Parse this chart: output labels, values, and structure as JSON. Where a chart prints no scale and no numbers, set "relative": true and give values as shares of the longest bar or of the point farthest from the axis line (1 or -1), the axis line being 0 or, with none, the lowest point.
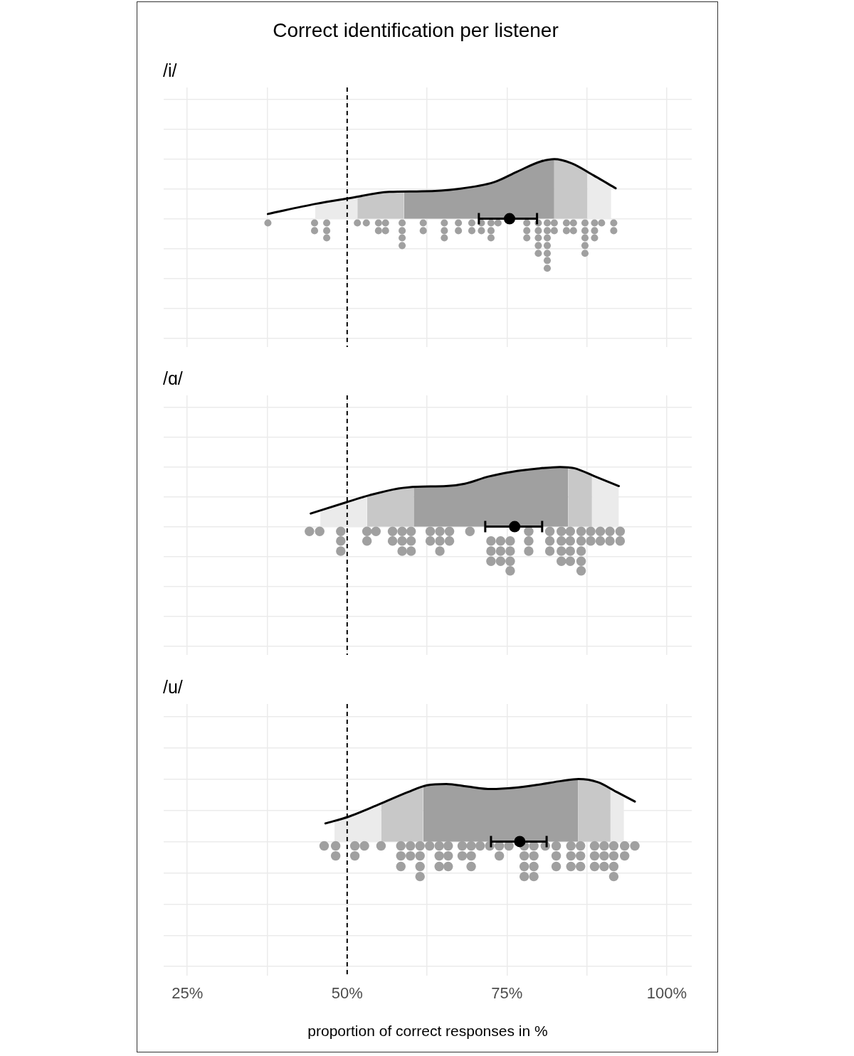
{
  "chart_data": [
    {
      "type": "line",
      "title": "Correct identification per listener",
      "subtitle": "/i/",
      "relative": true,
      "xlim": [
        21.3,
        103.9
      ],
      "xticks": [
        {
          "value": 25,
          "label": null
        },
        {
          "value": 37.5,
          "label": null
        },
        {
          "value": 50,
          "label": null
        },
        {
          "value": 62.5,
          "label": null
        },
        {
          "value": 75,
          "label": null
        },
        {
          "value": 87.5,
          "label": null
        },
        {
          "value": 100,
          "label": null
        }
      ],
      "tick_labels": false,
      "grid": true,
      "ref_lines": [
        {
          "axis": "x",
          "value": 50,
          "color": "#000000",
          "line_style": "dashed"
        }
      ],
      "series": [
        {
          "type": "area",
          "color": "#ebebeb",
          "x": [
            45.0,
            50.1,
            51.6
          ],
          "values": [
            0.25,
            0.34,
            0.37
          ]
        },
        {
          "type": "area",
          "color": "#c8c8c8",
          "x": [
            51.6,
            56.6,
            58.9
          ],
          "values": [
            0.37,
            0.45,
            0.46
          ]
        },
        {
          "type": "area",
          "color": "#a0a0a0",
          "x": [
            58.9,
            61.7,
            67.3,
            72.9,
            76.6,
            80.3,
            82.4
          ],
          "values": [
            0.46,
            0.46,
            0.5,
            0.61,
            0.79,
            0.96,
            1.0
          ]
        },
        {
          "type": "area",
          "color": "#c8c8c8",
          "x": [
            82.4,
            85.1,
            87.6
          ],
          "values": [
            1.0,
            0.93,
            0.78
          ]
        },
        {
          "type": "area",
          "color": "#ebebeb",
          "x": [
            87.6,
            88.5,
            91.3
          ],
          "values": [
            0.78,
            0.73,
            0.56
          ]
        },
        {
          "color": "#000000",
          "x": [
            37.6,
            45.1,
            50.1,
            56.6,
            61.7,
            67.3,
            72.9,
            76.6,
            80.3,
            82.4,
            85.1,
            88.5,
            92.0
          ],
          "values": [
            0.08,
            0.25,
            0.34,
            0.45,
            0.46,
            0.5,
            0.61,
            0.79,
            0.96,
            1.0,
            0.93,
            0.73,
            0.51
          ]
        },
        {
          "type": "scatter",
          "marker": "circle",
          "color": "#a0a0a0",
          "x": [
            37.6,
            44.9,
            44.9,
            46.8,
            46.8,
            46.8,
            51.6,
            53.0,
            54.9,
            54.9,
            56.0,
            56.0,
            58.6,
            58.6,
            58.6,
            58.6,
            61.9,
            61.9,
            65.2,
            65.2,
            65.2,
            67.4,
            67.4,
            69.5,
            69.5,
            71.0,
            71.0,
            72.5,
            72.5,
            72.5,
            73.6,
            78.1,
            78.1,
            78.1,
            79.9,
            79.9,
            79.9,
            79.9,
            79.9,
            81.3,
            81.3,
            81.3,
            81.3,
            81.3,
            81.3,
            81.3,
            82.4,
            82.4,
            84.3,
            84.3,
            85.4,
            85.4,
            87.2,
            87.2,
            87.2,
            87.2,
            87.2,
            88.7,
            88.7,
            88.7,
            89.8,
            91.7,
            91.7
          ],
          "values": [
            -0.07,
            -0.07,
            -0.2,
            -0.07,
            -0.2,
            -0.32,
            -0.07,
            -0.07,
            -0.07,
            -0.2,
            -0.07,
            -0.2,
            -0.07,
            -0.2,
            -0.32,
            -0.45,
            -0.07,
            -0.2,
            -0.07,
            -0.2,
            -0.32,
            -0.07,
            -0.2,
            -0.07,
            -0.2,
            -0.07,
            -0.2,
            -0.07,
            -0.2,
            -0.32,
            -0.07,
            -0.07,
            -0.2,
            -0.32,
            -0.07,
            -0.2,
            -0.32,
            -0.45,
            -0.58,
            -0.07,
            -0.2,
            -0.32,
            -0.45,
            -0.58,
            -0.7,
            -0.83,
            -0.07,
            -0.2,
            -0.07,
            -0.2,
            -0.07,
            -0.2,
            -0.07,
            -0.2,
            -0.32,
            -0.45,
            -0.58,
            -0.07,
            -0.2,
            -0.32,
            -0.07,
            -0.07,
            -0.2
          ]
        },
        {
          "type": "scatter",
          "marker": "circle",
          "color": "#000000",
          "x": [
            75.4
          ],
          "values": [
            0
          ],
          "xerrors": [
            [
              70.6,
              79.7
            ]
          ]
        }
      ]
    },
    {
      "type": "line",
      "subtitle": "/ɑ/",
      "relative": true,
      "xlim": [
        21.3,
        103.9
      ],
      "xticks": [
        {
          "value": 25,
          "label": null
        },
        {
          "value": 37.5,
          "label": null
        },
        {
          "value": 50,
          "label": null
        },
        {
          "value": 62.5,
          "label": null
        },
        {
          "value": 75,
          "label": null
        },
        {
          "value": 87.5,
          "label": null
        },
        {
          "value": 100,
          "label": null
        }
      ],
      "tick_labels": false,
      "grid": true,
      "ref_lines": [
        {
          "axis": "x",
          "value": 50,
          "color": "#000000",
          "line_style": "dashed"
        }
      ],
      "series": [
        {
          "type": "area",
          "color": "#ebebeb",
          "x": [
            45.8,
            49.9,
            53.1
          ],
          "values": [
            0.27,
            0.41,
            0.51
          ]
        },
        {
          "type": "area",
          "color": "#c8c8c8",
          "x": [
            53.1,
            58.0,
            60.4
          ],
          "values": [
            0.51,
            0.64,
            0.66
          ]
        },
        {
          "type": "area",
          "color": "#a0a0a0",
          "x": [
            60.4,
            61.0,
            65.5,
            68.4,
            72.1,
            75.8,
            79.5,
            83.3,
            84.6
          ],
          "values": [
            0.66,
            0.67,
            0.68,
            0.72,
            0.84,
            0.92,
            0.97,
            1.0,
            0.99
          ]
        },
        {
          "type": "area",
          "color": "#c8c8c8",
          "x": [
            84.6,
            85.5,
            88.3
          ],
          "values": [
            0.99,
            0.98,
            0.86
          ]
        },
        {
          "type": "area",
          "color": "#ebebeb",
          "x": [
            88.3,
            88.8,
            92.5
          ],
          "values": [
            0.86,
            0.84,
            0.68
          ]
        },
        {
          "color": "#000000",
          "x": [
            44.3,
            49.9,
            53.6,
            58.0,
            61.0,
            65.5,
            68.4,
            72.1,
            75.8,
            79.5,
            83.3,
            85.5,
            88.8,
            92.5
          ],
          "values": [
            0.22,
            0.41,
            0.53,
            0.64,
            0.67,
            0.68,
            0.72,
            0.84,
            0.92,
            0.97,
            1.0,
            0.98,
            0.84,
            0.68
          ]
        },
        {
          "type": "scatter",
          "marker": "circle",
          "color": "#a0a0a0",
          "x": [
            44.1,
            45.7,
            49.0,
            49.0,
            49.0,
            53.1,
            53.1,
            54.5,
            57.1,
            57.1,
            58.6,
            58.6,
            58.6,
            60.0,
            60.0,
            60.0,
            63.0,
            63.0,
            64.5,
            64.5,
            64.5,
            66.0,
            66.0,
            69.2,
            72.5,
            72.5,
            72.5,
            74.0,
            74.0,
            74.0,
            75.5,
            75.5,
            75.5,
            75.5,
            78.4,
            78.4,
            78.4,
            81.7,
            81.7,
            81.7,
            83.5,
            83.5,
            83.5,
            83.5,
            84.9,
            84.9,
            84.9,
            84.9,
            86.6,
            86.6,
            86.6,
            86.6,
            86.6,
            88.1,
            88.1,
            89.6,
            89.6,
            91.1,
            91.1,
            92.7,
            92.7
          ],
          "values": [
            -0.08,
            -0.08,
            -0.08,
            -0.24,
            -0.41,
            -0.08,
            -0.24,
            -0.08,
            -0.08,
            -0.24,
            -0.08,
            -0.24,
            -0.41,
            -0.08,
            -0.24,
            -0.41,
            -0.08,
            -0.24,
            -0.08,
            -0.24,
            -0.41,
            -0.08,
            -0.24,
            -0.08,
            -0.24,
            -0.41,
            -0.58,
            -0.24,
            -0.41,
            -0.58,
            -0.24,
            -0.41,
            -0.58,
            -0.74,
            -0.08,
            -0.24,
            -0.41,
            -0.08,
            -0.24,
            -0.41,
            -0.08,
            -0.24,
            -0.41,
            -0.58,
            -0.08,
            -0.24,
            -0.41,
            -0.58,
            -0.08,
            -0.24,
            -0.41,
            -0.58,
            -0.74,
            -0.08,
            -0.24,
            -0.08,
            -0.24,
            -0.08,
            -0.24,
            -0.08,
            -0.24
          ]
        },
        {
          "type": "scatter",
          "marker": "circle",
          "color": "#000000",
          "x": [
            76.2
          ],
          "values": [
            0
          ],
          "xerrors": [
            [
              71.6,
              80.5
            ]
          ]
        }
      ]
    },
    {
      "type": "line",
      "subtitle": "/u/",
      "xlabel": "proportion of correct responses in %",
      "relative": true,
      "xlim": [
        21.3,
        103.9
      ],
      "xticks": [
        {
          "value": 25,
          "label": "25%"
        },
        {
          "value": 37.5,
          "label": null
        },
        {
          "value": 50,
          "label": "50%"
        },
        {
          "value": 62.5,
          "label": null
        },
        {
          "value": 75,
          "label": "75%"
        },
        {
          "value": 87.5,
          "label": null
        },
        {
          "value": 100,
          "label": "100%"
        }
      ],
      "tick_labels": "x",
      "grid": true,
      "ref_lines": [
        {
          "axis": "x",
          "value": 50,
          "color": "#000000",
          "line_style": "dashed"
        }
      ],
      "series": [
        {
          "type": "area",
          "color": "#ebebeb",
          "x": [
            48.0,
            50.3,
            55.3
          ],
          "values": [
            0.33,
            0.4,
            0.61
          ]
        },
        {
          "type": "area",
          "color": "#c8c8c8",
          "x": [
            55.3,
            59.5,
            61.9
          ],
          "values": [
            0.61,
            0.79,
            0.88
          ]
        },
        {
          "type": "area",
          "color": "#a0a0a0",
          "x": [
            61.9,
            62.5,
            65.5,
            68.8,
            72.5,
            76.2,
            79.9,
            83.6,
            86.1
          ],
          "values": [
            0.88,
            0.9,
            0.92,
            0.88,
            0.84,
            0.86,
            0.91,
            0.97,
            1.0
          ]
        },
        {
          "type": "area",
          "color": "#c8c8c8",
          "x": [
            86.1,
            89.2,
            91.2
          ],
          "values": [
            1.0,
            0.95,
            0.84
          ]
        },
        {
          "type": "area",
          "color": "#ebebeb",
          "x": [
            91.2,
            92.2,
            93.3
          ],
          "values": [
            0.84,
            0.79,
            0.74
          ]
        },
        {
          "color": "#000000",
          "x": [
            46.6,
            50.3,
            55.1,
            59.5,
            62.5,
            65.5,
            68.8,
            72.5,
            76.2,
            79.9,
            83.6,
            86.2,
            89.2,
            92.2,
            95.0
          ],
          "values": [
            0.29,
            0.4,
            0.6,
            0.79,
            0.9,
            0.92,
            0.88,
            0.84,
            0.86,
            0.91,
            0.97,
            1.0,
            0.95,
            0.79,
            0.64
          ]
        },
        {
          "type": "scatter",
          "marker": "circle",
          "color": "#a0a0a0",
          "x": [
            46.4,
            48.2,
            48.2,
            51.2,
            51.2,
            52.7,
            55.3,
            58.4,
            58.4,
            58.4,
            59.9,
            59.9,
            61.4,
            61.4,
            61.4,
            61.4,
            62.9,
            64.4,
            64.4,
            64.4,
            65.8,
            65.8,
            65.8,
            68.0,
            68.0,
            69.4,
            69.4,
            69.4,
            70.8,
            72.3,
            73.8,
            73.8,
            75.3,
            77.7,
            77.7,
            77.7,
            77.7,
            79.2,
            79.2,
            79.2,
            79.2,
            81.0,
            82.7,
            82.7,
            82.7,
            85.0,
            85.0,
            85.0,
            86.5,
            86.5,
            86.5,
            88.7,
            88.7,
            88.7,
            90.2,
            90.2,
            90.2,
            91.7,
            91.7,
            91.7,
            91.7,
            93.4,
            93.4,
            95.0
          ],
          "values": [
            -0.07,
            -0.07,
            -0.23,
            -0.07,
            -0.23,
            -0.07,
            -0.07,
            -0.07,
            -0.23,
            -0.4,
            -0.07,
            -0.23,
            -0.07,
            -0.23,
            -0.4,
            -0.56,
            -0.07,
            -0.07,
            -0.23,
            -0.4,
            -0.07,
            -0.23,
            -0.4,
            -0.07,
            -0.23,
            -0.07,
            -0.23,
            -0.4,
            -0.07,
            -0.07,
            -0.07,
            -0.23,
            -0.07,
            -0.07,
            -0.23,
            -0.4,
            -0.56,
            -0.07,
            -0.23,
            -0.4,
            -0.56,
            -0.07,
            -0.07,
            -0.23,
            -0.4,
            -0.07,
            -0.23,
            -0.4,
            -0.07,
            -0.23,
            -0.4,
            -0.07,
            -0.23,
            -0.4,
            -0.07,
            -0.23,
            -0.4,
            -0.07,
            -0.23,
            -0.4,
            -0.56,
            -0.07,
            -0.23,
            -0.07
          ]
        },
        {
          "type": "scatter",
          "marker": "circle",
          "color": "#000000",
          "x": [
            77.0
          ],
          "values": [
            0
          ],
          "xerrors": [
            [
              72.5,
              81.2
            ]
          ]
        }
      ]
    }
  ]
}
